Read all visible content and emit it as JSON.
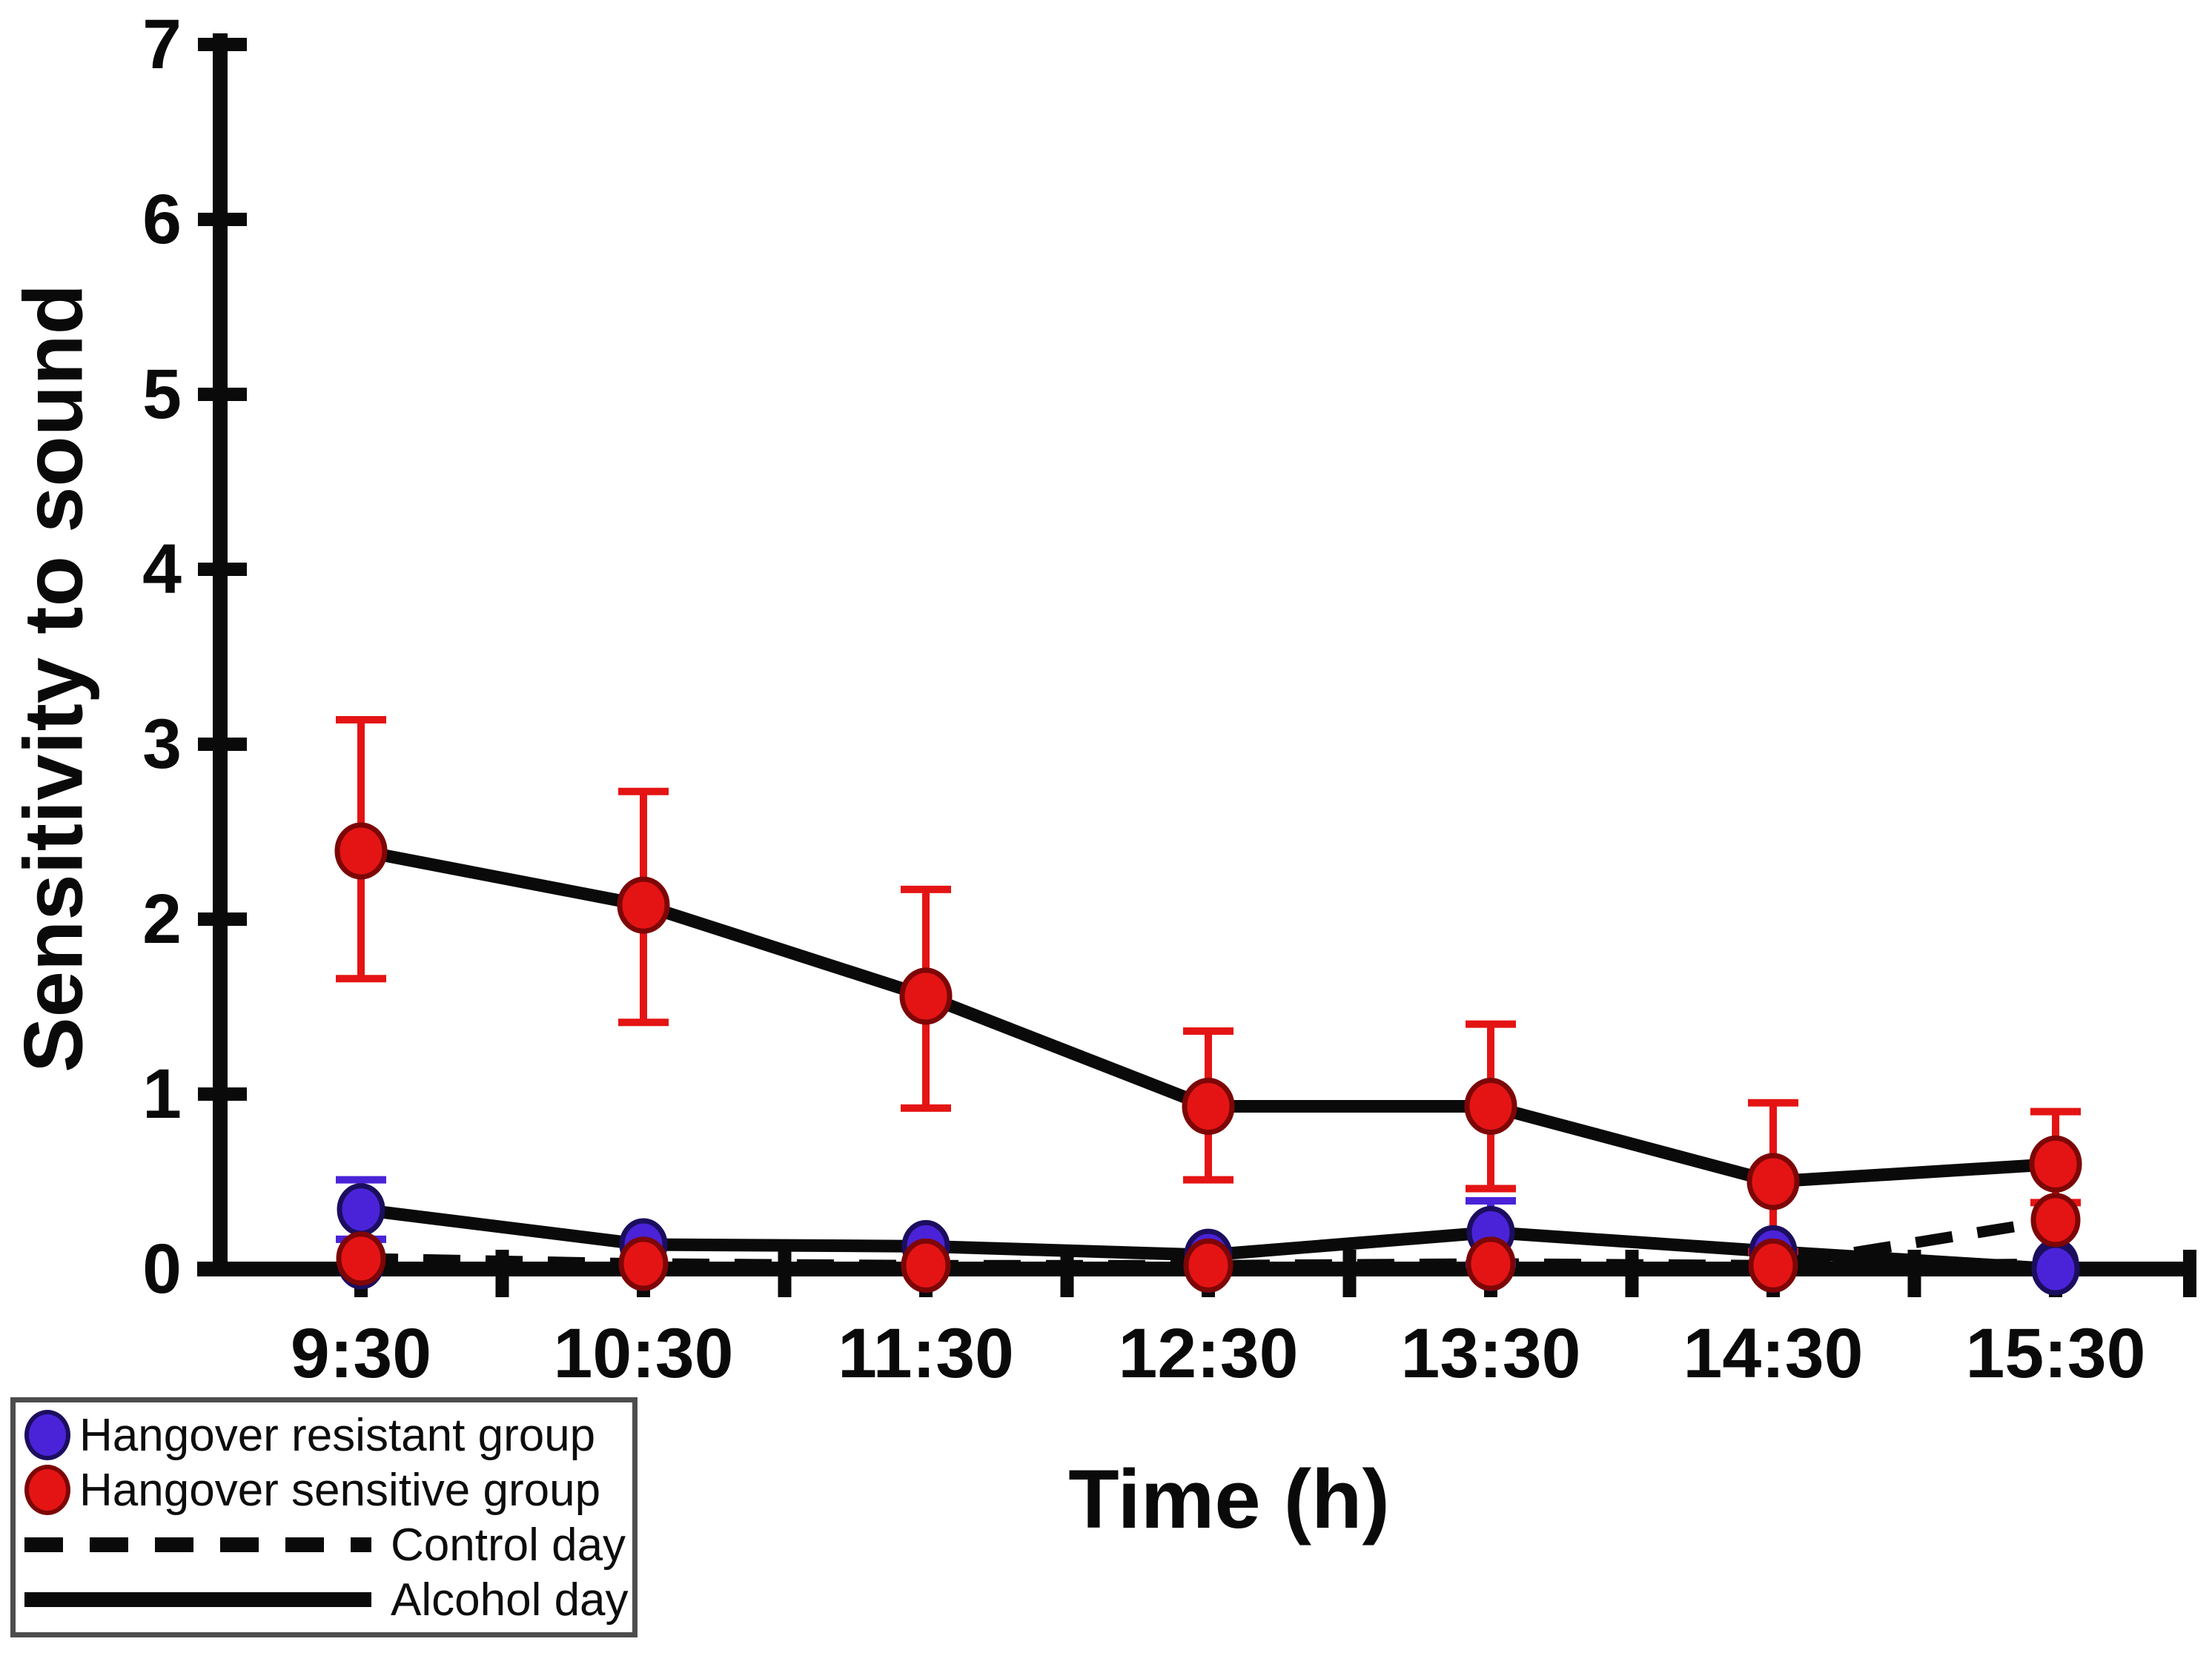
{
  "chart_data": {
    "type": "line",
    "title": "",
    "xlabel": "Time (h)",
    "ylabel": "Sensitivity to sound",
    "categories": [
      "9:30",
      "10:30",
      "11:30",
      "12:30",
      "13:30",
      "14:30",
      "15:30"
    ],
    "yticks": [
      "0",
      "1",
      "2",
      "3",
      "4",
      "5",
      "6",
      "7"
    ],
    "ylim": [
      0,
      7
    ],
    "grid": false,
    "legend_position": "bottom-left",
    "series": [
      {
        "key": "resistant_control",
        "group": "Hangover resistant group",
        "condition": "Control day",
        "line": "dashed",
        "marker_color": "#4a23d8",
        "values": [
          0.03,
          0.02,
          0.01,
          0.01,
          0.02,
          0.01,
          0.03
        ],
        "err_up": [
          0,
          0,
          0,
          0,
          0,
          0,
          0
        ],
        "err_down": [
          0,
          0,
          0,
          0,
          0,
          0,
          0
        ]
      },
      {
        "key": "sensitive_control",
        "group": "Hangover sensitive group",
        "condition": "Control day",
        "line": "dashed",
        "marker_color": "#e41414",
        "values": [
          0.06,
          0.03,
          0.02,
          0.02,
          0.03,
          0.02,
          0.28
        ],
        "err_up": [
          0,
          0,
          0,
          0,
          0,
          0,
          0
        ],
        "err_down": [
          0,
          0,
          0,
          0,
          0,
          0,
          0
        ]
      },
      {
        "key": "resistant_alcohol",
        "group": "Hangover resistant group",
        "condition": "Alcohol day",
        "line": "solid",
        "marker_color": "#4a23d8",
        "values": [
          0.34,
          0.14,
          0.13,
          0.08,
          0.21,
          0.1,
          0.0
        ],
        "err_up": [
          0.17,
          0,
          0,
          0,
          0.18,
          0,
          0
        ],
        "err_down": [
          0.17,
          0,
          0,
          0,
          0.18,
          0,
          0
        ]
      },
      {
        "key": "sensitive_alcohol",
        "group": "Hangover sensitive group",
        "condition": "Alcohol day",
        "line": "solid",
        "marker_color": "#e41414",
        "values": [
          2.39,
          2.08,
          1.56,
          0.93,
          0.93,
          0.5,
          0.6
        ],
        "err_up": [
          0.75,
          0.65,
          0.61,
          0.43,
          0.47,
          0.45,
          0.3
        ],
        "err_down": [
          0.73,
          0.67,
          0.64,
          0.42,
          0.47,
          0.4,
          0.22
        ]
      }
    ],
    "legend": [
      {
        "label": "Hangover resistant group",
        "swatch": "dot",
        "color": "#4a23d8"
      },
      {
        "label": "Hangover sensitive group",
        "swatch": "dot",
        "color": "#e41414"
      },
      {
        "label": "Control day",
        "swatch": "dashed-line",
        "color": "#0a0a0a"
      },
      {
        "label": "Alcohol day",
        "swatch": "solid-line",
        "color": "#0a0a0a"
      }
    ],
    "colors": {
      "resistant_fill": "#4a23d8",
      "resistant_border": "#1c0e5e",
      "sensitive_fill": "#e41414",
      "sensitive_border": "#7d0606",
      "line": "#0a0a0a"
    }
  }
}
